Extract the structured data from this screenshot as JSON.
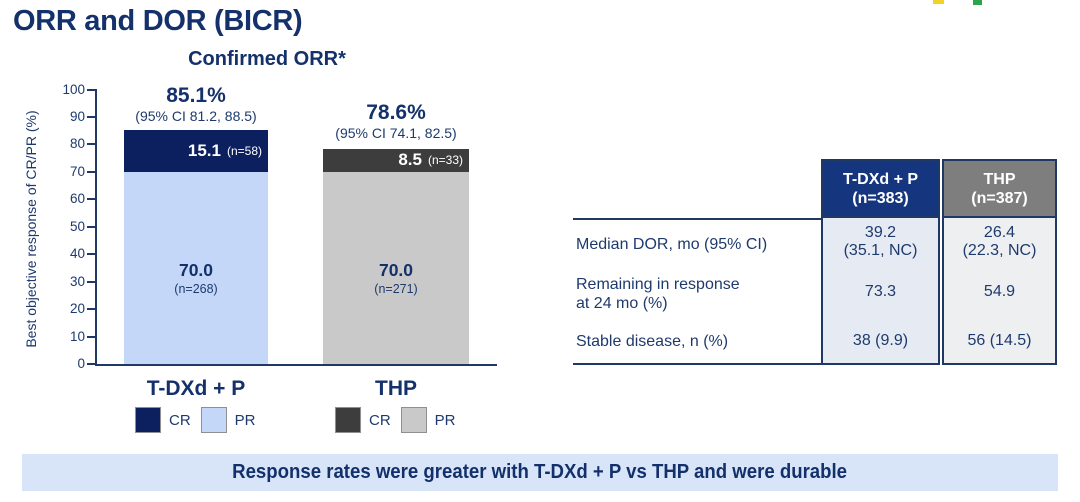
{
  "page": {
    "title": "ORR and DOR (BICR)",
    "banner": "Response rates were greater with T-DXd + P vs THP and were durable"
  },
  "logo": {
    "colors": [
      "#f2d227",
      "#2ca44c"
    ]
  },
  "chart_data": {
    "type": "bar",
    "stacked": true,
    "title": "Confirmed ORR*",
    "ylabel": "Best objective response of CR/PR (%)",
    "ylim": [
      0,
      100
    ],
    "yticks": [
      0,
      10,
      20,
      30,
      40,
      50,
      60,
      70,
      80,
      90,
      100
    ],
    "grid": false,
    "legend_position": "below-each-bar",
    "categories": [
      "T-DXd + P",
      "THP"
    ],
    "series": [
      {
        "name": "PR",
        "values": [
          70.0,
          70.0
        ],
        "colors": [
          "#c5d7f8",
          "#c9c9c9"
        ]
      },
      {
        "name": "CR",
        "values": [
          15.1,
          8.5
        ],
        "colors": [
          "#0c2060",
          "#3d3d3d"
        ]
      }
    ],
    "segment_labels": {
      "pr": [
        {
          "value": "70.0",
          "n": "(n=268)"
        },
        {
          "value": "70.0",
          "n": "(n=271)"
        }
      ],
      "cr": [
        {
          "value": "15.1",
          "n": "(n=58)"
        },
        {
          "value": "8.5",
          "n": "(n=33)"
        }
      ]
    },
    "totals": [
      {
        "pct": "85.1%",
        "ci": "(95% CI 81.2, 88.5)"
      },
      {
        "pct": "78.6%",
        "ci": "(95% CI 74.1, 82.5)"
      }
    ],
    "legend": [
      {
        "group": "T-DXd + P",
        "entries": [
          {
            "label": "CR",
            "color": "#0c2060"
          },
          {
            "label": "PR",
            "color": "#c5d7f8"
          }
        ]
      },
      {
        "group": "THP",
        "entries": [
          {
            "label": "CR",
            "color": "#3d3d3d"
          },
          {
            "label": "PR",
            "color": "#c9c9c9"
          }
        ]
      }
    ]
  },
  "table": {
    "columns": [
      {
        "line1": "T-DXd + P",
        "line2": "(n=383)",
        "bg": "#15357e",
        "body_bg": "#e6eaf3"
      },
      {
        "line1": "THP",
        "line2": "(n=387)",
        "bg": "#7e7e7e",
        "body_bg": "#edeff1"
      }
    ],
    "rows": [
      {
        "label_line1": "Median DOR, mo (95% CI)",
        "label_line2": "",
        "values": [
          {
            "line1": "39.2",
            "line2": "(35.1, NC)"
          },
          {
            "line1": "26.4",
            "line2": "(22.3, NC)"
          }
        ]
      },
      {
        "label_line1": "Remaining in response",
        "label_line2": "at 24 mo (%)",
        "values": [
          {
            "line1": "73.3",
            "line2": ""
          },
          {
            "line1": "54.9",
            "line2": ""
          }
        ]
      },
      {
        "label_line1": "Stable disease, n (%)",
        "label_line2": "",
        "values": [
          {
            "line1": "38 (9.9)",
            "line2": ""
          },
          {
            "line1": "56 (14.5)",
            "line2": ""
          }
        ]
      }
    ]
  }
}
